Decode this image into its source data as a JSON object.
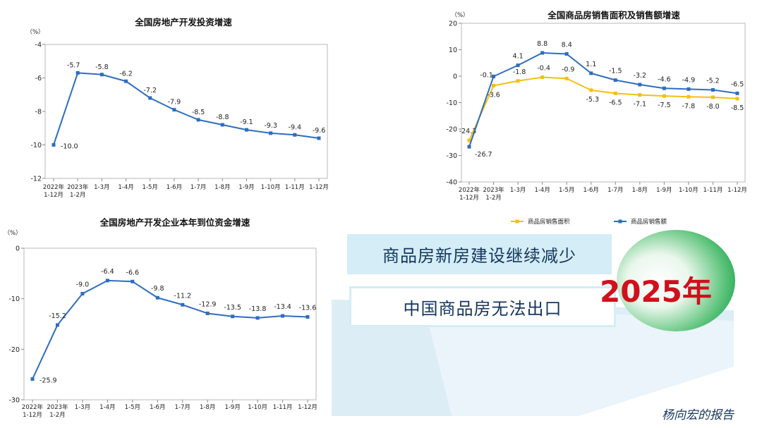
{
  "chart_data": [
    {
      "type": "line",
      "title": "全国房地产开发投资增速",
      "unit": "（%）",
      "ylim": [
        -12,
        -4
      ],
      "yticks": [
        "-4",
        "-6",
        "-8",
        "-10",
        "-12"
      ],
      "categories": [
        [
          "2022年",
          "1-12月"
        ],
        [
          "2023年",
          "1-2月"
        ],
        [
          "1-3月"
        ],
        [
          "1-4月"
        ],
        [
          "1-5月"
        ],
        [
          "1-6月"
        ],
        [
          "1-7月"
        ],
        [
          "1-8月"
        ],
        [
          "1-9月"
        ],
        [
          "1-10月"
        ],
        [
          "1-11月"
        ],
        [
          "1-12月"
        ]
      ],
      "series": [
        {
          "name": "房地产开发投资",
          "color": "#2e6dc1",
          "values": [
            -10.0,
            -5.7,
            -5.8,
            -6.2,
            -7.2,
            -7.9,
            -8.5,
            -8.8,
            -9.1,
            -9.3,
            -9.4,
            -9.6
          ],
          "labels": [
            "-10.0",
            "-5.7",
            "-5.8",
            "-6.2",
            "-7.2",
            "-7.9",
            "-8.5",
            "-8.8",
            "-9.1",
            "-9.3",
            "-9.4",
            "-9.6"
          ]
        }
      ]
    },
    {
      "type": "line",
      "title": "全国商品房销售面积及销售额增速",
      "unit": "（%）",
      "ylim": [
        -40,
        20
      ],
      "yticks": [
        "20",
        "10",
        "0",
        "-10",
        "-20",
        "-30",
        "-40"
      ],
      "categories": [
        [
          "2022年",
          "1-12月"
        ],
        [
          "2023年",
          "1-2月"
        ],
        [
          "1-3月"
        ],
        [
          "1-4月"
        ],
        [
          "1-5月"
        ],
        [
          "1-6月"
        ],
        [
          "1-7月"
        ],
        [
          "1-8月"
        ],
        [
          "1-9月"
        ],
        [
          "1-10月"
        ],
        [
          "1-11月"
        ],
        [
          "1-12月"
        ]
      ],
      "legend_position": "bottom",
      "series": [
        {
          "name": "商品房销售面积",
          "color": "#f5c010",
          "values": [
            -24.3,
            -3.6,
            -1.8,
            -0.4,
            -0.9,
            -5.3,
            -6.5,
            -7.1,
            -7.5,
            -7.8,
            -8.0,
            -8.5
          ],
          "labels": [
            "-24.3",
            "-3.6",
            "-1.8",
            "-0.4",
            "-0.9",
            "-5.3",
            "-6.5",
            "-7.1",
            "-7.5",
            "-7.8",
            "-8.0",
            "-8.5"
          ]
        },
        {
          "name": "商品房销售额",
          "color": "#2e6dc1",
          "values": [
            -26.7,
            -0.1,
            4.1,
            8.8,
            8.4,
            1.1,
            -1.5,
            -3.2,
            -4.6,
            -4.9,
            -5.2,
            -6.5
          ],
          "labels": [
            "-26.7",
            "-0.1",
            "4.1",
            "8.8",
            "8.4",
            "1.1",
            "-1.5",
            "-3.2",
            "-4.6",
            "-4.9",
            "-5.2",
            "-6.5"
          ]
        }
      ]
    },
    {
      "type": "line",
      "title": "全国房地产开发企业本年到位资金增速",
      "unit": "（%）",
      "ylim": [
        -30,
        0
      ],
      "yticks": [
        "0",
        "-10",
        "-20",
        "-30"
      ],
      "categories": [
        [
          "2022年",
          "1-12月"
        ],
        [
          "2023年",
          "1-2月"
        ],
        [
          "1-3月"
        ],
        [
          "1-4月"
        ],
        [
          "1-5月"
        ],
        [
          "1-6月"
        ],
        [
          "1-7月"
        ],
        [
          "1-8月"
        ],
        [
          "1-9月"
        ],
        [
          "1-10月"
        ],
        [
          "1-11月"
        ],
        [
          "1-12月"
        ]
      ],
      "series": [
        {
          "name": "本年到位资金",
          "color": "#2e6dc1",
          "values": [
            -25.9,
            -15.2,
            -9.0,
            -6.4,
            -6.6,
            -9.8,
            -11.2,
            -12.9,
            -13.5,
            -13.8,
            -13.4,
            -13.6
          ],
          "labels": [
            "-25.9",
            "-15.2",
            "-9.0",
            "-6.4",
            "-6.6",
            "-9.8",
            "-11.2",
            "-12.9",
            "-13.5",
            "-13.8",
            "-13.4",
            "-13.6"
          ]
        }
      ]
    }
  ],
  "headlines": {
    "line1": "商品房新房建设继续减少",
    "line2": "中国商品房无法出口",
    "year": "2025年"
  },
  "watermark": "杨向宏的报告",
  "colors": {
    "blue": "#2e6dc1",
    "yellow": "#f5c010",
    "accent_red": "#d0101c"
  }
}
